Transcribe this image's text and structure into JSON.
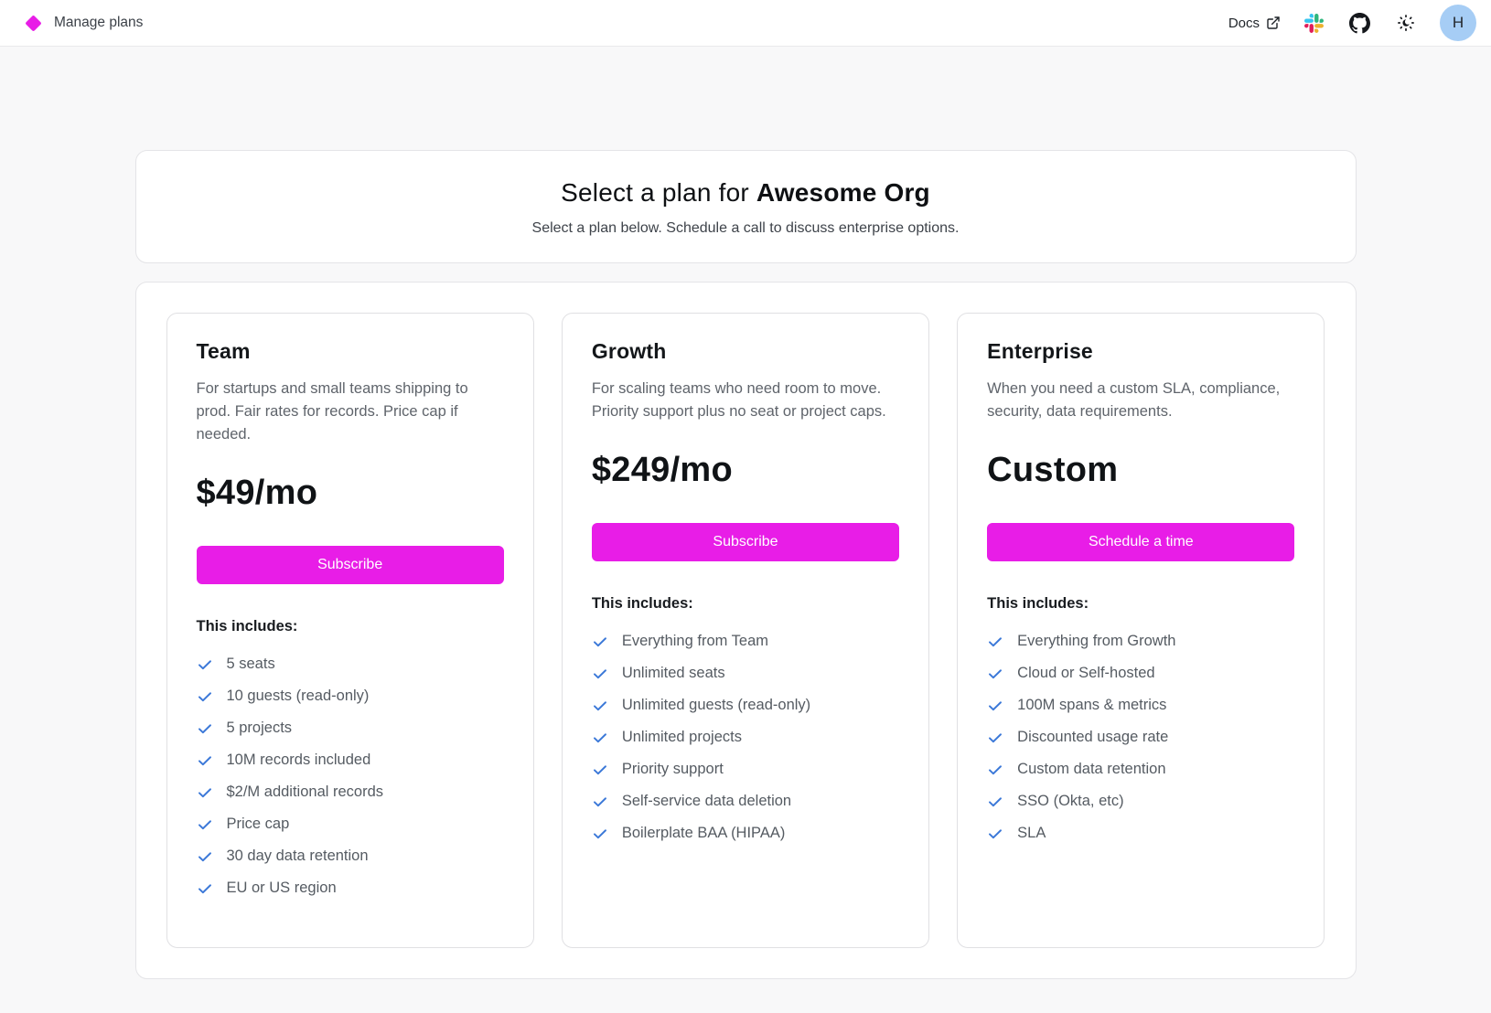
{
  "header": {
    "logo_icon": "diamond-icon",
    "title": "Manage plans",
    "docs_label": "Docs",
    "docs_icon": "external-link-icon",
    "nav_icons": [
      "slack-icon",
      "github-icon",
      "theme-toggle-sun-moon-icon"
    ],
    "avatar_initial": "H"
  },
  "hero": {
    "title_prefix": "Select a plan for",
    "title_org": "Awesome Org",
    "subtitle": "Select a plan below. Schedule a call to discuss enterprise options."
  },
  "plans": [
    {
      "name": "Team",
      "description": "For startups and small teams shipping to prod. Fair rates for records. Price cap if needed.",
      "price": "$49/mo",
      "cta": "Subscribe",
      "includes_label": "This includes:",
      "features": [
        "5 seats",
        "10 guests (read-only)",
        "5 projects",
        "10M records included",
        "$2/M additional records",
        "Price cap",
        "30 day data retention",
        "EU or US region"
      ]
    },
    {
      "name": "Growth",
      "description": "For scaling teams who need room to move. Priority support plus no seat or project caps.",
      "price": "$249/mo",
      "cta": "Subscribe",
      "includes_label": "This includes:",
      "features": [
        "Everything from Team",
        "Unlimited seats",
        "Unlimited guests (read-only)",
        "Unlimited projects",
        "Priority support",
        "Self-service data deletion",
        "Boilerplate BAA (HIPAA)"
      ]
    },
    {
      "name": "Enterprise",
      "description": "When you need a custom SLA, compliance, security, data requirements.",
      "price": "Custom",
      "cta": "Schedule a time",
      "includes_label": "This includes:",
      "features": [
        "Everything from Growth",
        "Cloud or Self-hosted",
        "100M spans & metrics",
        "Discounted usage rate",
        "Custom data retention",
        "SSO (Okta, etc)",
        "SLA"
      ]
    }
  ],
  "colors": {
    "accent": "#e81de7",
    "check_blue": "#3b78d8",
    "avatar_bg": "#a6cdf5"
  }
}
